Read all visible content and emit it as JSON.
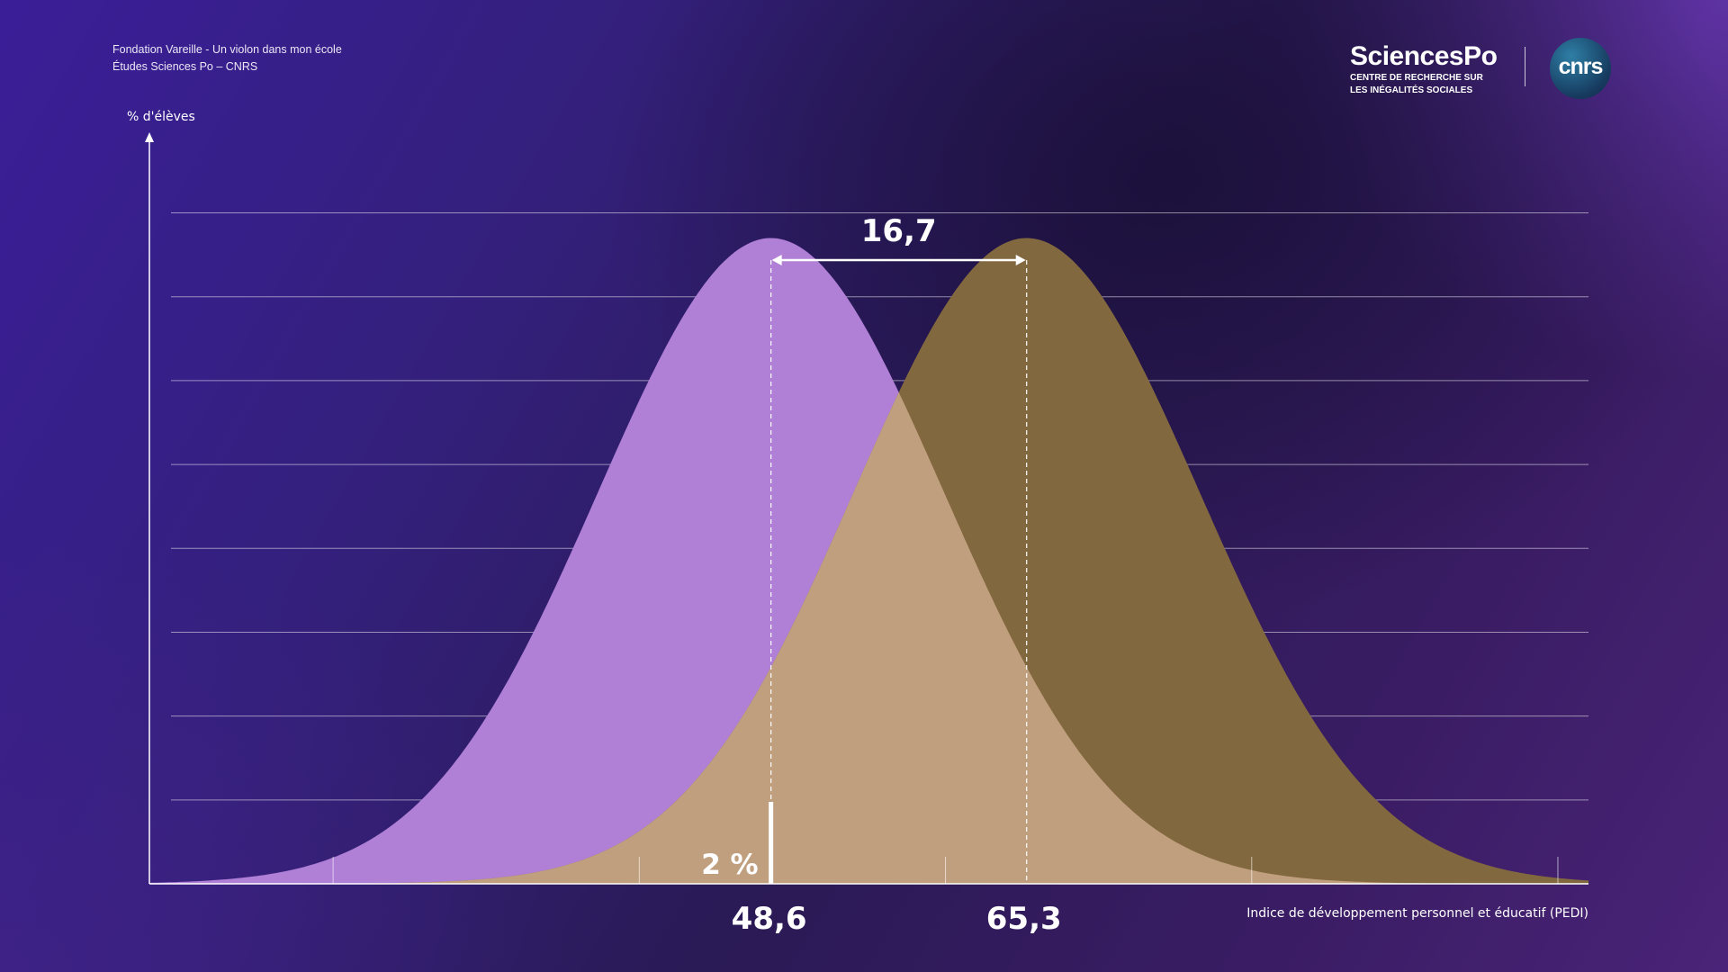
{
  "source": {
    "line1": "Fondation Vareille - Un violon dans mon école",
    "line2": "Études Sciences Po – CNRS"
  },
  "logos": {
    "sciencespo_name": "SciencesPo",
    "sciencespo_sub1": "CENTRE DE RECHERCHE SUR",
    "sciencespo_sub2": "LES INÉGALITÉS SOCIALES",
    "cnrs": "cnrs"
  },
  "colors": {
    "series_left": "#b07fd6",
    "series_right": "#82683f",
    "overlap": "#c09f7f",
    "gridline": "#ffffff",
    "background": "#2e1c6a"
  },
  "chart_data": {
    "type": "area",
    "ylabel": "% d'élèves",
    "xlabel": "Indice de développement personnel et éducatif (PEDI)",
    "xlim": [
      8,
      102
    ],
    "ylim": [
      0,
      8.8
    ],
    "grid": true,
    "y_gridlines": [
      1,
      2,
      3,
      4,
      5,
      6,
      7,
      8
    ],
    "series": [
      {
        "mean": 48.6,
        "sd": 11.3,
        "peak": 7.7
      },
      {
        "mean": 65.3,
        "sd": 11.3,
        "peak": 7.7
      }
    ],
    "annotations": {
      "mean_left_label": "48,6",
      "mean_right_label": "65,3",
      "difference_label": "16,7",
      "threshold_label": "2 %",
      "threshold_x": 48.6
    }
  }
}
